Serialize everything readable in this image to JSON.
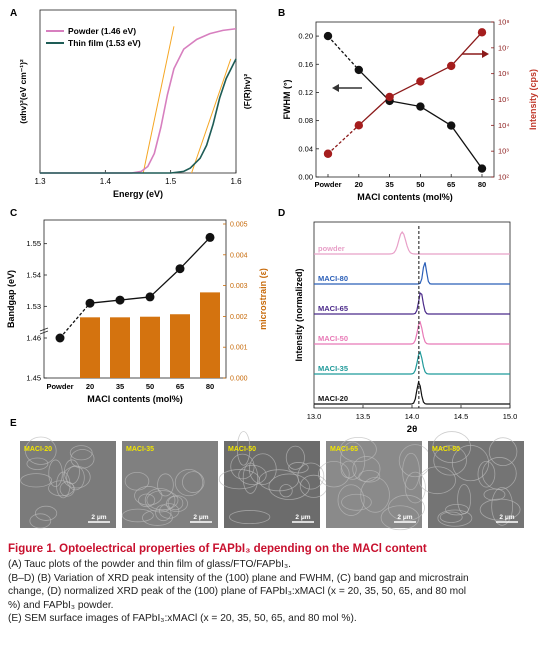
{
  "chart_data": [
    {
      "panel": "A",
      "type": "line",
      "xlabel": "Energy (eV)",
      "ylabel_left": "(αhv)²(eV cm⁻¹)²",
      "ylabel_right": "(F(R)hv)²",
      "xlim": [
        1.3,
        1.6
      ],
      "xticks": [
        "1.3",
        "1.4",
        "1.5",
        "1.6"
      ],
      "series": [
        {
          "name": "Powder (1.46 eV)",
          "color": "#d77fbf",
          "x": [
            1.3,
            1.4,
            1.44,
            1.455,
            1.465,
            1.475,
            1.485,
            1.495,
            1.505,
            1.52,
            1.54,
            1.56,
            1.58,
            1.6
          ],
          "y": [
            0.0,
            0.0,
            0.0,
            0.01,
            0.04,
            0.12,
            0.28,
            0.48,
            0.64,
            0.76,
            0.82,
            0.855,
            0.875,
            0.885
          ]
        },
        {
          "name": "Thin film (1.53 eV)",
          "color": "#1e5c56",
          "x": [
            1.3,
            1.45,
            1.5,
            1.52,
            1.53,
            1.545,
            1.555,
            1.565,
            1.575,
            1.585,
            1.6
          ],
          "y": [
            0.0,
            0.0,
            0.0,
            0.01,
            0.03,
            0.09,
            0.17,
            0.3,
            0.46,
            0.58,
            0.7
          ]
        }
      ],
      "tangents": [
        {
          "x": [
            1.458,
            1.505
          ],
          "y": [
            0.0,
            0.9
          ]
        },
        {
          "x": [
            1.532,
            1.592
          ],
          "y": [
            0.0,
            0.7
          ]
        }
      ],
      "tangent_color": "#f5a623"
    },
    {
      "panel": "B",
      "type": "line",
      "xlabel": "MACl contents (mol%)",
      "ylabel_left": "FWHM (°)",
      "ylabel_right": "Intensity (cps)",
      "categories": [
        "Powder",
        "20",
        "35",
        "50",
        "65",
        "80"
      ],
      "ylim_left": [
        0.0,
        0.22
      ],
      "yticks_left": [
        "0.00",
        "0.04",
        "0.08",
        "0.12",
        "0.16",
        "0.20"
      ],
      "yticks_right": [
        "10²",
        "10³",
        "10⁴",
        "10⁵",
        "10⁶",
        "10⁷",
        "10⁸"
      ],
      "series": [
        {
          "name": "FWHM",
          "axis": "left",
          "color": "#111111",
          "values": [
            0.2,
            0.152,
            0.108,
            0.1,
            0.073,
            0.012
          ]
        },
        {
          "name": "Intensity",
          "axis": "right",
          "color": "#8b1a1a",
          "log10_values": [
            2.9,
            4.0,
            5.1,
            5.7,
            6.3,
            7.6
          ]
        }
      ]
    },
    {
      "panel": "C",
      "type": "bar",
      "xlabel": "MACl contents (mol%)",
      "ylabel_left": "Bandgap (eV)",
      "ylabel_right": "microstrain (ε)",
      "categories": [
        "Powder",
        "20",
        "35",
        "50",
        "65",
        "80"
      ],
      "yticks_left": [
        "1.45",
        "1.46",
        "1.53",
        "1.54",
        "1.55"
      ],
      "yticks_right": [
        "0.000",
        "0.001",
        "0.002",
        "0.003",
        "0.004",
        "0.005"
      ],
      "bandgap": [
        1.46,
        1.531,
        1.532,
        1.533,
        1.542,
        1.552
      ],
      "microstrain": [
        null,
        0.00197,
        0.00197,
        0.00199,
        0.00207,
        0.00278
      ],
      "bar_color": "#d4730f"
    },
    {
      "panel": "D",
      "type": "line",
      "xlabel": "2θ",
      "ylabel": "Intensity (normalized)",
      "xlim": [
        13.0,
        15.0
      ],
      "xticks": [
        "13.0",
        "13.5",
        "14.0",
        "14.5",
        "15.0"
      ],
      "dashed_x": 14.07,
      "series": [
        {
          "name": "powder",
          "color": "#e8a0c8",
          "peak": 13.9,
          "width": 0.05
        },
        {
          "name": "MACI-80",
          "color": "#2b5fb8",
          "peak": 14.13,
          "width": 0.025
        },
        {
          "name": "MACI-65",
          "color": "#4b2a8a",
          "peak": 14.09,
          "width": 0.03
        },
        {
          "name": "MACI-50",
          "color": "#e879b6",
          "peak": 14.08,
          "width": 0.035
        },
        {
          "name": "MACI-35",
          "color": "#1f9a9a",
          "peak": 14.08,
          "width": 0.035
        },
        {
          "name": "MACI-20",
          "color": "#111111",
          "peak": 14.07,
          "width": 0.03
        }
      ]
    }
  ],
  "panels": {
    "a": "A",
    "b": "B",
    "c": "C",
    "d": "D",
    "e": "E"
  },
  "sem": {
    "images": [
      {
        "label": "MACI-20",
        "scale": "2 μm"
      },
      {
        "label": "MACI-35",
        "scale": "2 μm"
      },
      {
        "label": "MACI-50",
        "scale": "2 μm"
      },
      {
        "label": "MACI-65",
        "scale": "2 μm"
      },
      {
        "label": "MACI-80",
        "scale": "2 μm"
      }
    ],
    "label_color": "#f2e600"
  },
  "caption": {
    "title": "Figure 1.  Optoelectrical properties of FAPbI₃ depending on the MACl content",
    "lines": [
      "(A) Tauc plots of the powder and thin film of glass/FTO/FAPbI₃.",
      "(B–D) (B) Variation of XRD peak intensity of the (100) plane and FWHM, (C) band gap and microstrain",
      "change, (D) normalized XRD peak of the (100) plane of FAPbI₃:xMACl (x = 20, 35, 50, 65, and 80 mol",
      "%) and FAPbI₃ powder.",
      "(E) SEM surface images of FAPbI₃:xMACl (x = 20, 35, 50, 65, and 80 mol %)."
    ]
  }
}
